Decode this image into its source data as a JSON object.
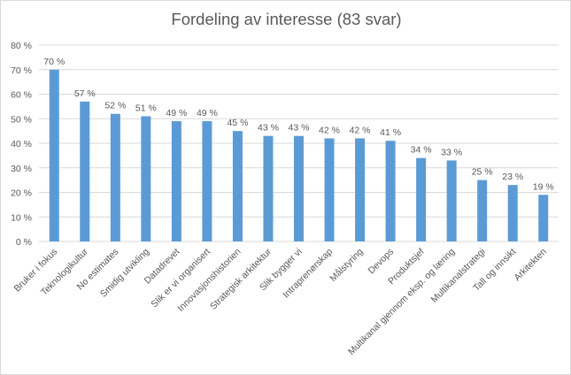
{
  "chart_data": {
    "type": "bar",
    "title": "Fordeling av interesse (83 svar)",
    "xlabel": "",
    "ylabel": "",
    "ylim": [
      0,
      80
    ],
    "y_ticks": [
      "0 %",
      "10 %",
      "20 %",
      "30 %",
      "40 %",
      "50 %",
      "60 %",
      "70 %",
      "80 %"
    ],
    "grid": true,
    "legend": "none",
    "categories": [
      "Bruker i fokus",
      "Teknologikultur",
      "No estimates",
      "Smidig utvikling",
      "Datadrevet",
      "Slik er vi organisert",
      "Innovasjonshistorien",
      "Strategisk arkitektur",
      "Slik bygger vi",
      "Intraprenørskap",
      "Målstyring",
      "Devops",
      "Produktsjef",
      "Multikanal gjennom eksp. og læring",
      "Multikanalstrategi",
      "Tall og innsikt",
      "Arkitekten"
    ],
    "values": [
      70,
      57,
      52,
      51,
      49,
      49,
      45,
      43,
      43,
      42,
      42,
      41,
      34,
      33,
      25,
      23,
      19
    ],
    "data_labels": [
      "70 %",
      "57 %",
      "52 %",
      "51 %",
      "49 %",
      "49 %",
      "45 %",
      "43 %",
      "43 %",
      "42 %",
      "42 %",
      "41 %",
      "34 %",
      "33 %",
      "25 %",
      "23 %",
      "19 %"
    ],
    "colors": {
      "bar": "#5b9bd5",
      "grid": "#d9d9d9",
      "text": "#595959"
    }
  }
}
